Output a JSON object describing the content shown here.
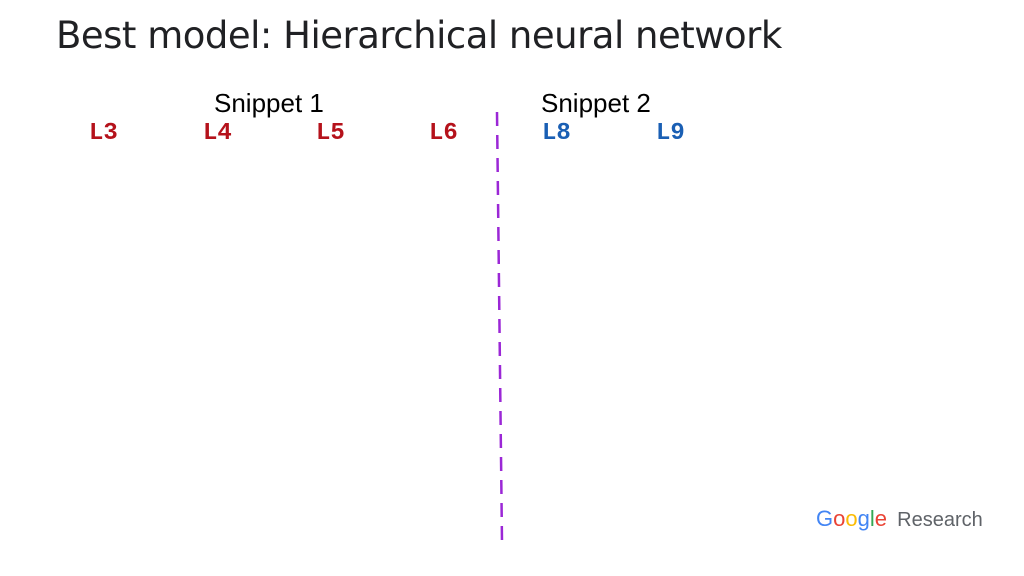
{
  "title": "Best model: Hierarchical neural network",
  "snippets": [
    {
      "label": "Snippet 1",
      "lines": [
        "L3",
        "L4",
        "L5",
        "L6"
      ],
      "color": "#b5121b"
    },
    {
      "label": "Snippet 2",
      "lines": [
        "L8",
        "L9"
      ],
      "color": "#1a5fb4"
    }
  ],
  "divider_color": "#9b27d6",
  "logo": {
    "google_letters": [
      "G",
      "o",
      "o",
      "g",
      "l",
      "e"
    ],
    "google_colors": [
      "#4285f4",
      "#ea4335",
      "#fbbc05",
      "#4285f4",
      "#34a853",
      "#ea4335"
    ],
    "research_text": "Research"
  }
}
